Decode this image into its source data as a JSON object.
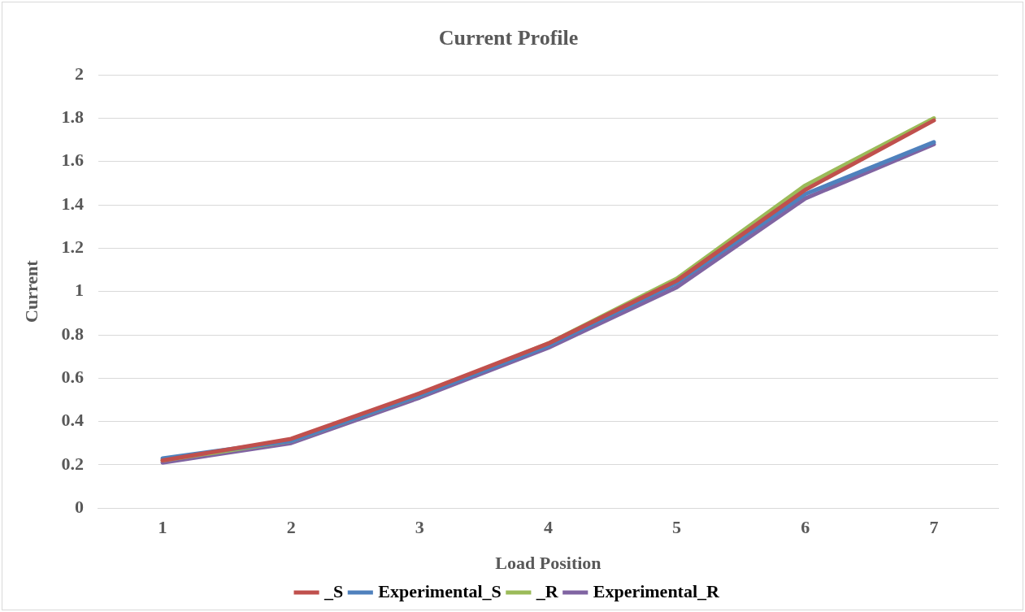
{
  "chart_data": {
    "type": "line",
    "title": "Current Profile",
    "xlabel": "Load Position",
    "ylabel": "Current",
    "categories": [
      "1",
      "2",
      "3",
      "4",
      "5",
      "6",
      "7"
    ],
    "series": [
      {
        "name": "_S",
        "color": "#c0504d",
        "values": [
          0.22,
          0.32,
          0.53,
          0.76,
          1.05,
          1.47,
          1.79
        ]
      },
      {
        "name": "Experimental_S",
        "color": "#4f81bd",
        "values": [
          0.23,
          0.31,
          0.52,
          0.75,
          1.04,
          1.45,
          1.69
        ]
      },
      {
        "name": "_R",
        "color": "#9bbb59",
        "values": [
          0.22,
          0.31,
          0.52,
          0.76,
          1.06,
          1.49,
          1.8
        ]
      },
      {
        "name": "Experimental_R",
        "color": "#8064a2",
        "values": [
          0.21,
          0.3,
          0.51,
          0.74,
          1.02,
          1.43,
          1.68
        ]
      }
    ],
    "ylim": [
      0,
      2
    ],
    "yticks": [
      0,
      0.2,
      0.4,
      0.6,
      0.8,
      1,
      1.2,
      1.4,
      1.6,
      1.8,
      2
    ],
    "grid": "y",
    "legend": "bottom",
    "marker": "none",
    "line_style": "solid"
  }
}
